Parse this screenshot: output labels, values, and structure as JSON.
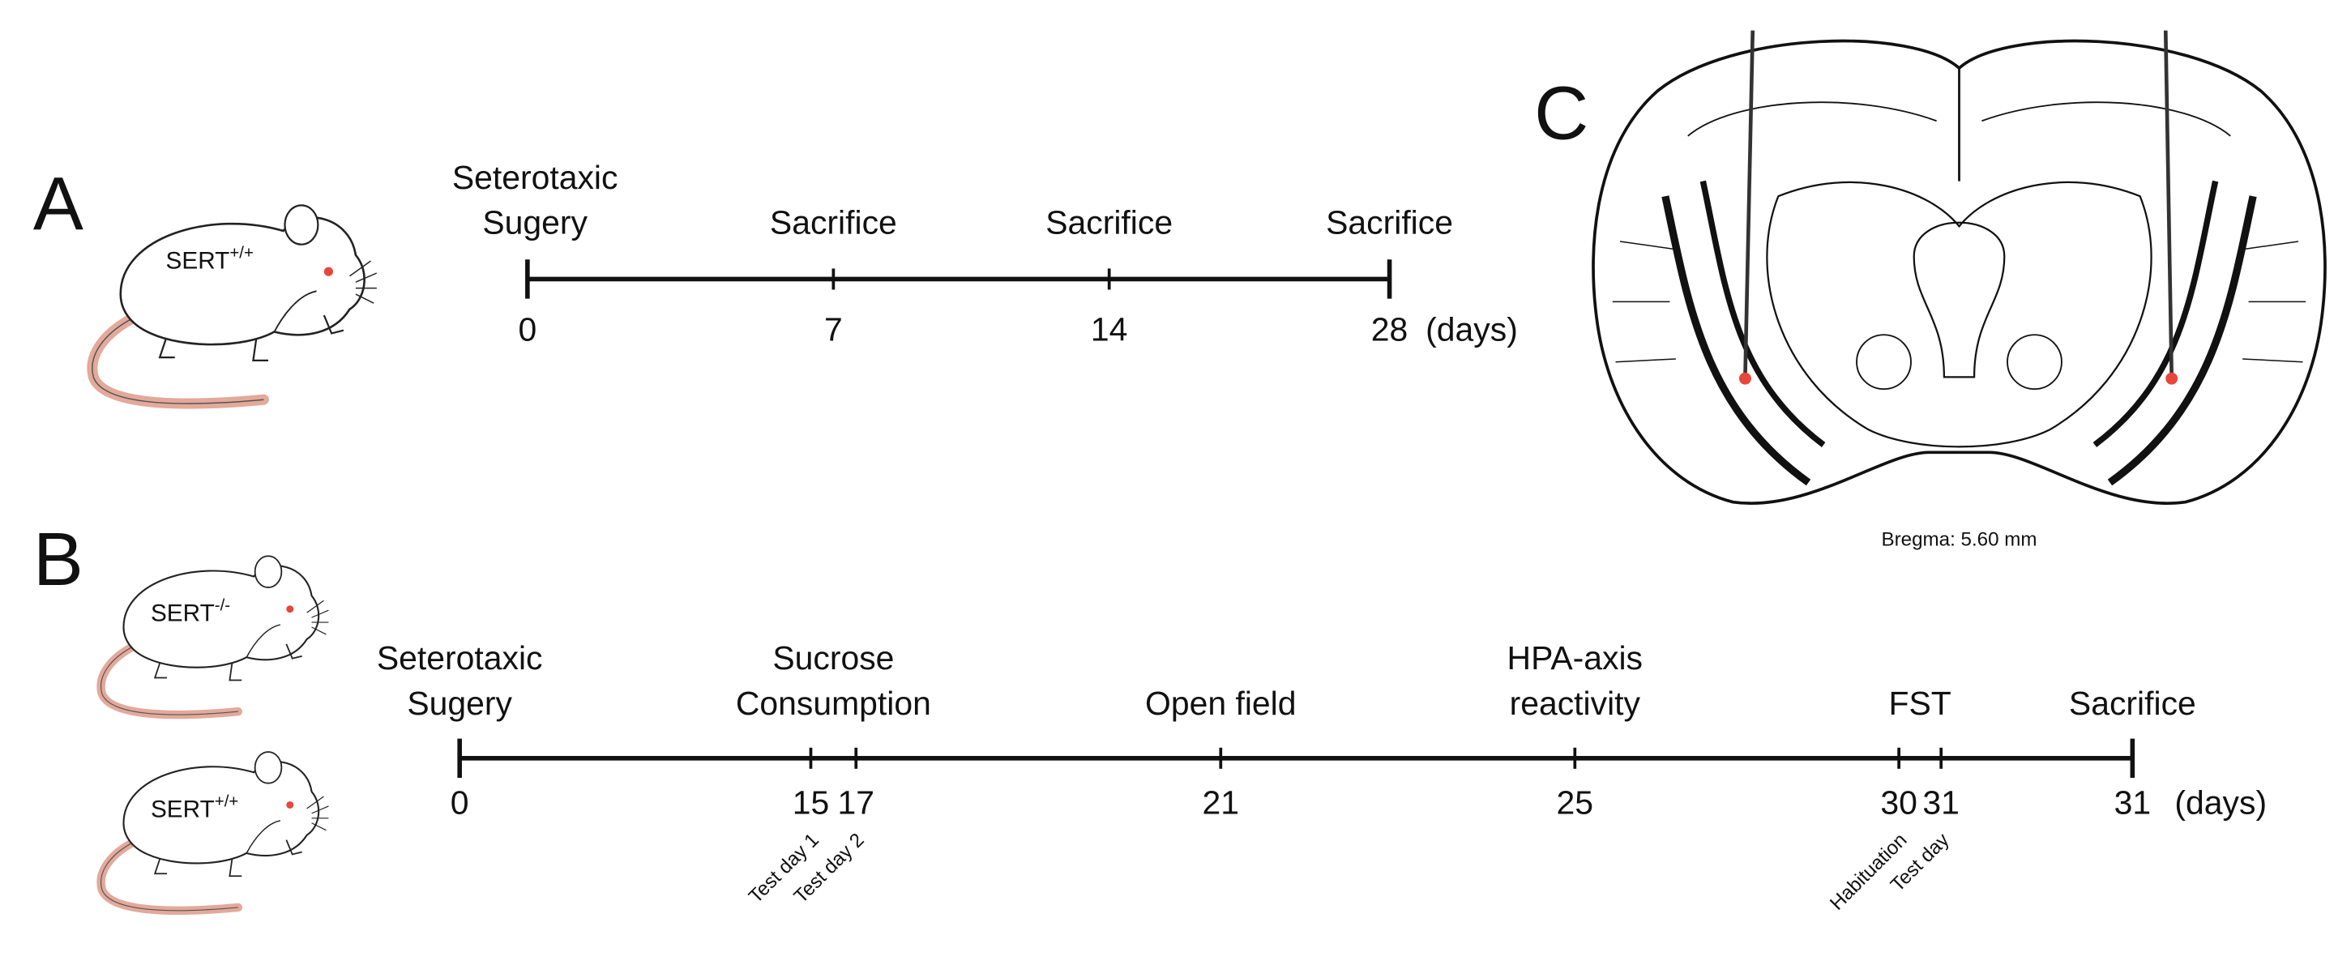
{
  "panel_a": {
    "label": "A",
    "subject": {
      "name": "SERT",
      "genotype": "+/+"
    },
    "timeline": {
      "events": [
        {
          "label": [
            "Seterotaxic",
            "Sugery"
          ],
          "day": 0
        },
        {
          "label": [
            "Sacrifice"
          ],
          "day": 7
        },
        {
          "label": [
            "Sacrifice"
          ],
          "day": 14
        },
        {
          "label": [
            "Sacrifice"
          ],
          "day": 28
        }
      ],
      "unit": "(days)"
    }
  },
  "panel_b": {
    "label": "B",
    "subjects": [
      {
        "name": "SERT",
        "genotype": "-/-"
      },
      {
        "name": "SERT",
        "genotype": "+/+"
      }
    ],
    "timeline": {
      "events": [
        {
          "label": [
            "Seterotaxic",
            "Sugery"
          ],
          "days": [
            {
              "day": 0
            }
          ]
        },
        {
          "label": [
            "Sucrose",
            "Consumption"
          ],
          "days": [
            {
              "day": 15,
              "note": "Test day 1"
            },
            {
              "day": 17,
              "note": "Test day 2"
            }
          ]
        },
        {
          "label": [
            "Open field"
          ],
          "days": [
            {
              "day": 21
            }
          ]
        },
        {
          "label": [
            "HPA-axis",
            "reactivity"
          ],
          "days": [
            {
              "day": 25
            }
          ]
        },
        {
          "label": [
            "FST"
          ],
          "days": [
            {
              "day": 30,
              "note": "Habituation"
            },
            {
              "day": 31,
              "note": "Test day"
            }
          ]
        },
        {
          "label": [
            "Sacrifice"
          ],
          "days": [
            {
              "day": 31
            }
          ]
        }
      ],
      "unit": "(days)"
    }
  },
  "panel_c": {
    "label": "C",
    "caption": "Bregma: 5.60 mm"
  }
}
